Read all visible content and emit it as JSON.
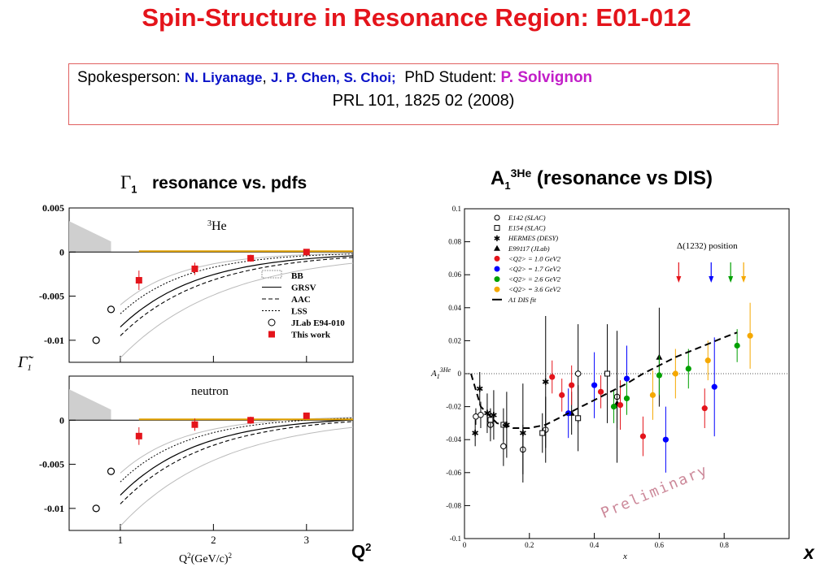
{
  "title": "Spin-Structure in Resonance Region: E01-012",
  "credits": {
    "spokes_label": "Spokesperson:",
    "spokes_1": "N. Liyanage",
    "comma": ",",
    "spokes_2": "J. P. Chen, S. Choi;",
    "student_label": "PhD Student:",
    "student": "P. Solvignon",
    "reference": "PRL 101, 1825 02 (2008)"
  },
  "left_heading": "resonance vs. pdfs",
  "left_heading_symbol": "Γ1",
  "right_heading": "A13He (resonance vs DIS)",
  "q2_label": "Q2",
  "x_label_big": "x",
  "colors": {
    "red": "#e4141b",
    "blue": "#0000ff",
    "green": "#00a000",
    "orange": "#f5a800"
  },
  "chart_data": [
    {
      "type": "scatter",
      "panel_label": "3He",
      "ylabel": "Γ̃1",
      "xlabel": "Q2(GeV/c)2",
      "xlim": [
        0.45,
        3.5
      ],
      "ylim": [
        -0.0125,
        0.005
      ],
      "y_ticks": [
        "0.005",
        "0",
        "-0.005",
        "-0.01"
      ],
      "x_ticks": [
        "1",
        "2",
        "3"
      ],
      "legend": [
        "BB",
        "GRSV",
        "AAC",
        "LSS",
        "JLab E94-010",
        "This work"
      ],
      "legend_position": "right",
      "series": [
        {
          "name": "JLab E94-010",
          "marker": "open-circle",
          "x": [
            0.74,
            0.9
          ],
          "y": [
            -0.01,
            -0.0065
          ],
          "err": [
            0.0004,
            0.0004
          ]
        },
        {
          "name": "This work",
          "marker": "red-square",
          "x": [
            1.2,
            1.8,
            2.4,
            3.0
          ],
          "y": [
            -0.0032,
            -0.0019,
            -0.0007,
            0.0
          ],
          "err": [
            0.0011,
            0.0007,
            0.0004,
            0.0002
          ]
        }
      ]
    },
    {
      "type": "scatter",
      "panel_label": "neutron",
      "xlim": [
        0.45,
        3.5
      ],
      "ylim": [
        -0.0125,
        0.005
      ],
      "y_ticks": [
        "0",
        "-0.005",
        "-0.01"
      ],
      "x_ticks": [
        "1",
        "2",
        "3"
      ],
      "series": [
        {
          "name": "JLab E94-010",
          "marker": "open-circle",
          "x": [
            0.74,
            0.9
          ],
          "y": [
            -0.01,
            -0.0058
          ],
          "err": [
            0.0004,
            0.0004
          ]
        },
        {
          "name": "This work",
          "marker": "red-square",
          "x": [
            1.2,
            1.8,
            2.4,
            3.0
          ],
          "y": [
            -0.0018,
            -0.0005,
            0.0,
            0.0005
          ],
          "err": [
            0.001,
            0.0007,
            0.0004,
            0.0002
          ]
        }
      ]
    },
    {
      "type": "scatter",
      "ylabel": "A13He",
      "xlabel": "x",
      "xlim": [
        0,
        1.0
      ],
      "ylim": [
        -0.1,
        0.1
      ],
      "x_ticks": [
        "0",
        "0.2",
        "0.4",
        "0.6",
        "0.8"
      ],
      "y_ticks": [
        "-0.1",
        "-0.08",
        "-0.06",
        "-0.04",
        "-0.02",
        "0",
        "0.02",
        "0.04",
        "0.06",
        "0.08",
        "0.1"
      ],
      "annotation": "Δ(1232) position",
      "watermark": "Preliminary",
      "legend": [
        "E142 (SLAC)",
        "E154 (SLAC)",
        "HERMES (DESY)",
        "E99117 (JLab)",
        "<Q2> = 1.0 GeV2",
        "<Q2> = 1.7 GeV2",
        "<Q2> = 2.6 GeV2",
        "<Q2> = 3.6 GeV2",
        "A1 DIS fit"
      ],
      "legend_position": "top-left",
      "series": [
        {
          "name": "E142 (SLAC)",
          "marker": "open-circle",
          "x": [
            0.035,
            0.05,
            0.08,
            0.12,
            0.18,
            0.25,
            0.35,
            0.47
          ],
          "y": [
            -0.026,
            -0.025,
            -0.031,
            -0.044,
            -0.046,
            -0.034,
            0.0,
            -0.014
          ],
          "err": [
            0.005,
            0.008,
            0.01,
            0.012,
            0.015,
            0.02,
            0.03,
            0.04
          ]
        },
        {
          "name": "E154 (SLAC)",
          "marker": "open-square",
          "x": [
            0.08,
            0.12,
            0.24,
            0.35,
            0.44
          ],
          "y": [
            -0.028,
            -0.031,
            -0.036,
            -0.027,
            0.0
          ],
          "err": [
            0.006,
            0.01,
            0.012,
            0.02,
            0.03
          ]
        },
        {
          "name": "HERMES (DESY)",
          "marker": "star",
          "x": [
            0.033,
            0.047,
            0.07,
            0.09,
            0.13,
            0.18,
            0.25
          ],
          "y": [
            -0.036,
            -0.009,
            -0.024,
            -0.025,
            -0.031,
            -0.036,
            -0.005
          ],
          "err": [
            0.008,
            0.01,
            0.012,
            0.015,
            0.02,
            0.03,
            0.04
          ]
        },
        {
          "name": "E99117 (JLab)",
          "marker": "triangle",
          "x": [
            0.33,
            0.47,
            0.6
          ],
          "y": [
            -0.024,
            -0.018,
            0.01
          ],
          "err": [
            0.013,
            0.015,
            0.03
          ]
        },
        {
          "name": "<Q2> = 1.0 GeV2",
          "color": "red",
          "x": [
            0.27,
            0.3,
            0.33,
            0.42,
            0.48,
            0.55,
            0.74
          ],
          "y": [
            -0.002,
            -0.013,
            -0.007,
            -0.011,
            -0.019,
            -0.038,
            -0.021
          ],
          "err": [
            0.01,
            0.01,
            0.012,
            0.01,
            0.015,
            0.012,
            0.012
          ]
        },
        {
          "name": "<Q2> = 1.7 GeV2",
          "color": "blue",
          "x": [
            0.32,
            0.4,
            0.5,
            0.62,
            0.77
          ],
          "y": [
            -0.024,
            -0.007,
            -0.003,
            -0.04,
            -0.008
          ],
          "err": [
            0.015,
            0.02,
            0.02,
            0.02,
            0.03
          ]
        },
        {
          "name": "<Q2> = 2.6 GeV2",
          "color": "green",
          "x": [
            0.46,
            0.5,
            0.6,
            0.69,
            0.84
          ],
          "y": [
            -0.02,
            -0.015,
            -0.001,
            0.003,
            0.017
          ],
          "err": [
            0.01,
            0.01,
            0.012,
            0.012,
            0.01
          ]
        },
        {
          "name": "<Q2> = 3.6 GeV2",
          "color": "orange",
          "x": [
            0.58,
            0.65,
            0.75,
            0.88
          ],
          "y": [
            -0.013,
            0.0,
            0.008,
            0.023
          ],
          "err": [
            0.015,
            0.015,
            0.012,
            0.02
          ]
        },
        {
          "name": "A1 DIS fit",
          "line": "dashed",
          "x": [
            0.02,
            0.05,
            0.1,
            0.15,
            0.2,
            0.25,
            0.3,
            0.35,
            0.4,
            0.45,
            0.5,
            0.55,
            0.6,
            0.65,
            0.7,
            0.75,
            0.8,
            0.84
          ],
          "y": [
            0.0,
            -0.02,
            -0.03,
            -0.033,
            -0.033,
            -0.031,
            -0.026,
            -0.021,
            -0.016,
            -0.011,
            -0.006,
            0.0,
            0.005,
            0.01,
            0.014,
            0.018,
            0.022,
            0.025
          ]
        }
      ]
    }
  ]
}
